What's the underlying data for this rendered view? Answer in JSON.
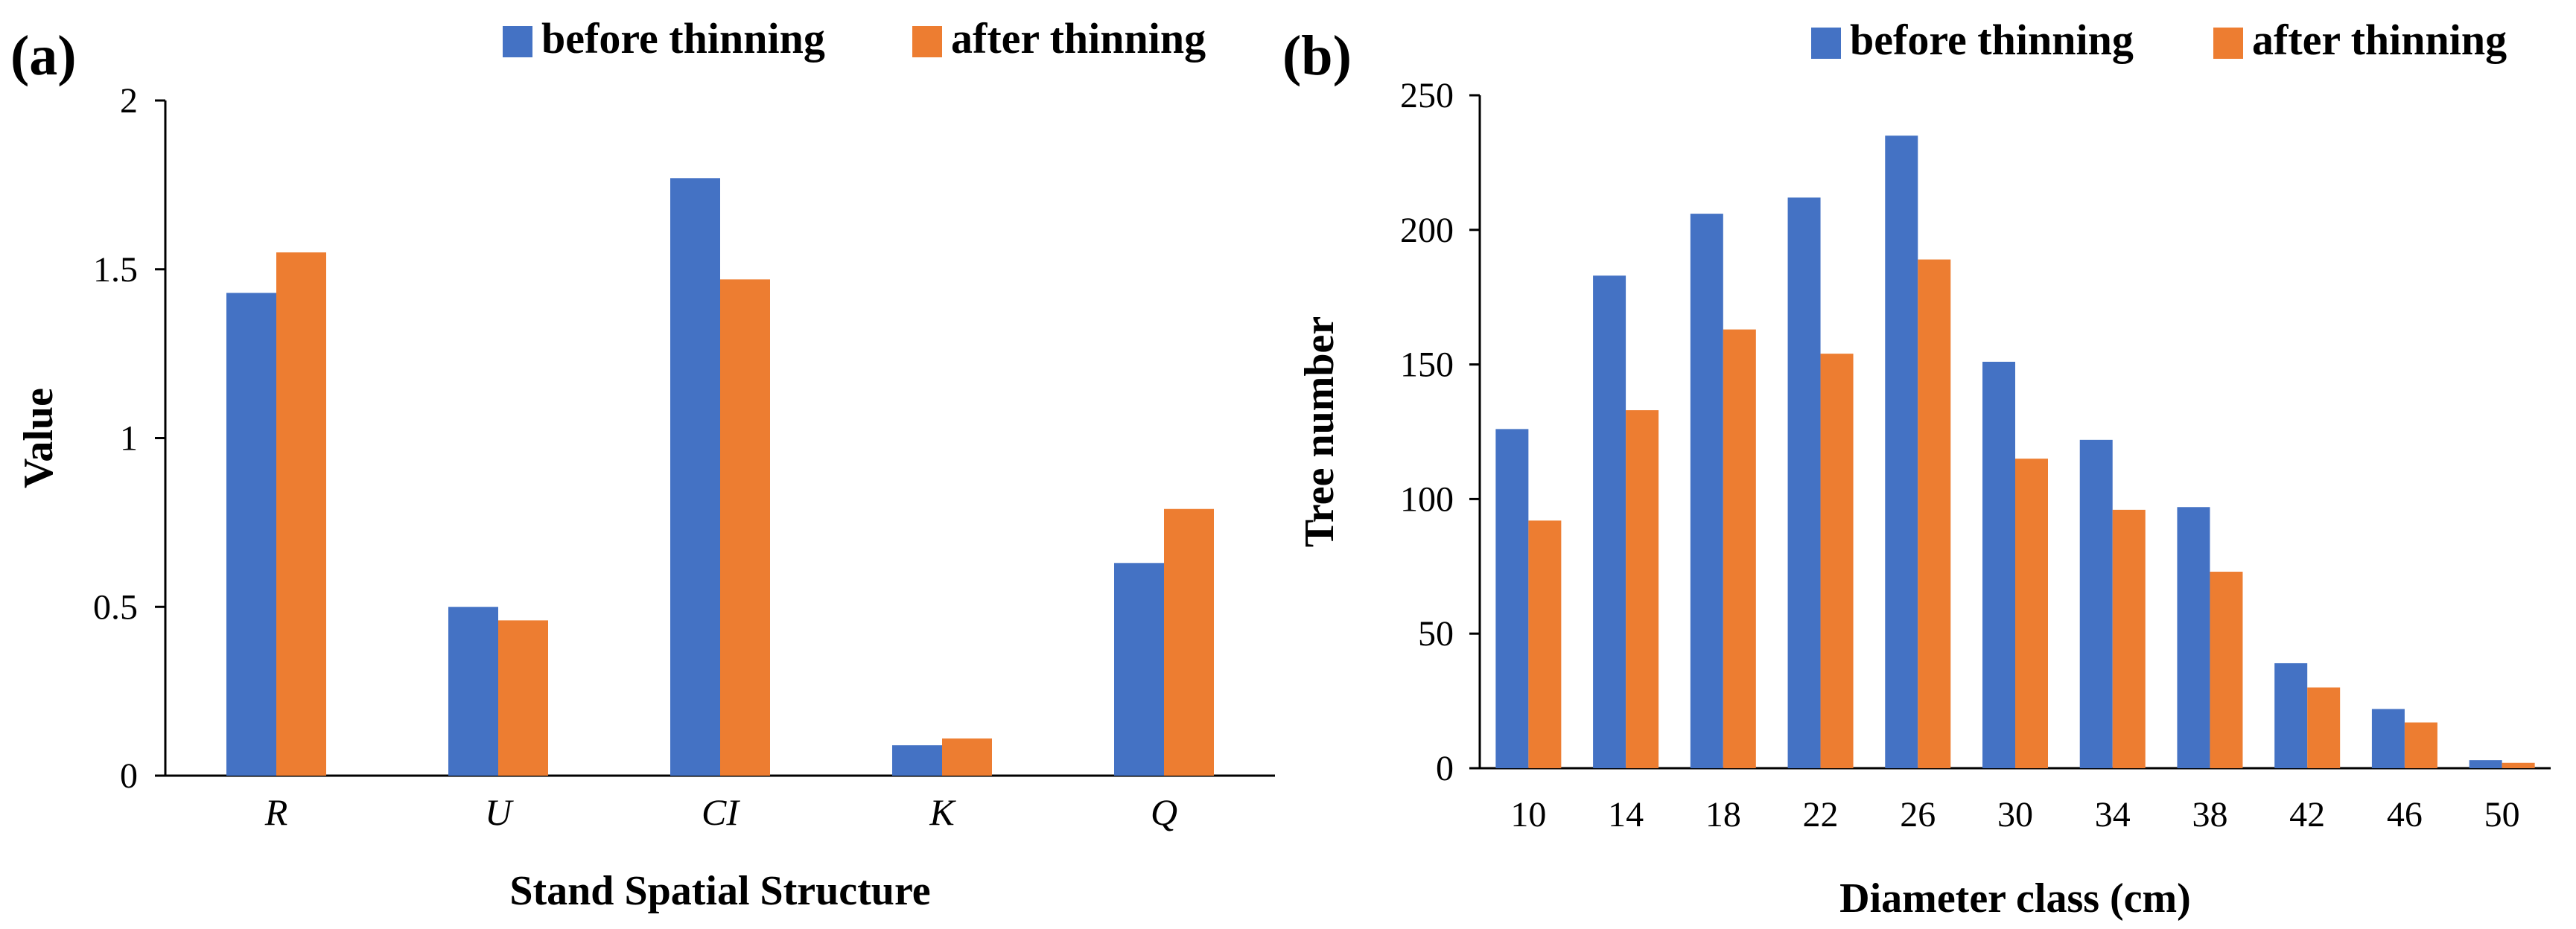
{
  "colors": {
    "before": "#4472C4",
    "after": "#ED7D31",
    "axis": "#000000"
  },
  "chart_data": [
    {
      "type": "bar",
      "panel_label": "(a)",
      "categories": [
        "R",
        "U",
        "CI",
        "K",
        "Q"
      ],
      "series": [
        {
          "name": "before thinning",
          "values": [
            1.43,
            0.5,
            1.77,
            0.09,
            0.63
          ]
        },
        {
          "name": "after thinning",
          "values": [
            1.55,
            0.46,
            1.47,
            0.11,
            0.79
          ]
        }
      ],
      "xlabel": "Stand Spatial Structure",
      "ylabel": "Value",
      "ylim": [
        0,
        2
      ],
      "yticks": [
        0,
        0.5,
        1,
        1.5,
        2
      ],
      "ytick_labels": [
        "0",
        "0.5",
        "1",
        "1.5",
        "2"
      ],
      "legend": "top-right",
      "grid": false
    },
    {
      "type": "bar",
      "panel_label": "(b)",
      "categories": [
        "10",
        "14",
        "18",
        "22",
        "26",
        "30",
        "34",
        "38",
        "42",
        "46",
        "50"
      ],
      "series": [
        {
          "name": "before thinning",
          "values": [
            126,
            183,
            206,
            212,
            235,
            151,
            122,
            97,
            39,
            22,
            3
          ]
        },
        {
          "name": "after thinning",
          "values": [
            92,
            133,
            163,
            154,
            189,
            115,
            96,
            73,
            30,
            17,
            2
          ]
        }
      ],
      "xlabel": "Diameter class (cm)",
      "ylabel": "Tree number",
      "ylim": [
        0,
        250
      ],
      "yticks": [
        0,
        50,
        100,
        150,
        200,
        250
      ],
      "ytick_labels": [
        "0",
        "50",
        "100",
        "150",
        "200",
        "250"
      ],
      "legend": "top-right",
      "grid": false
    }
  ]
}
